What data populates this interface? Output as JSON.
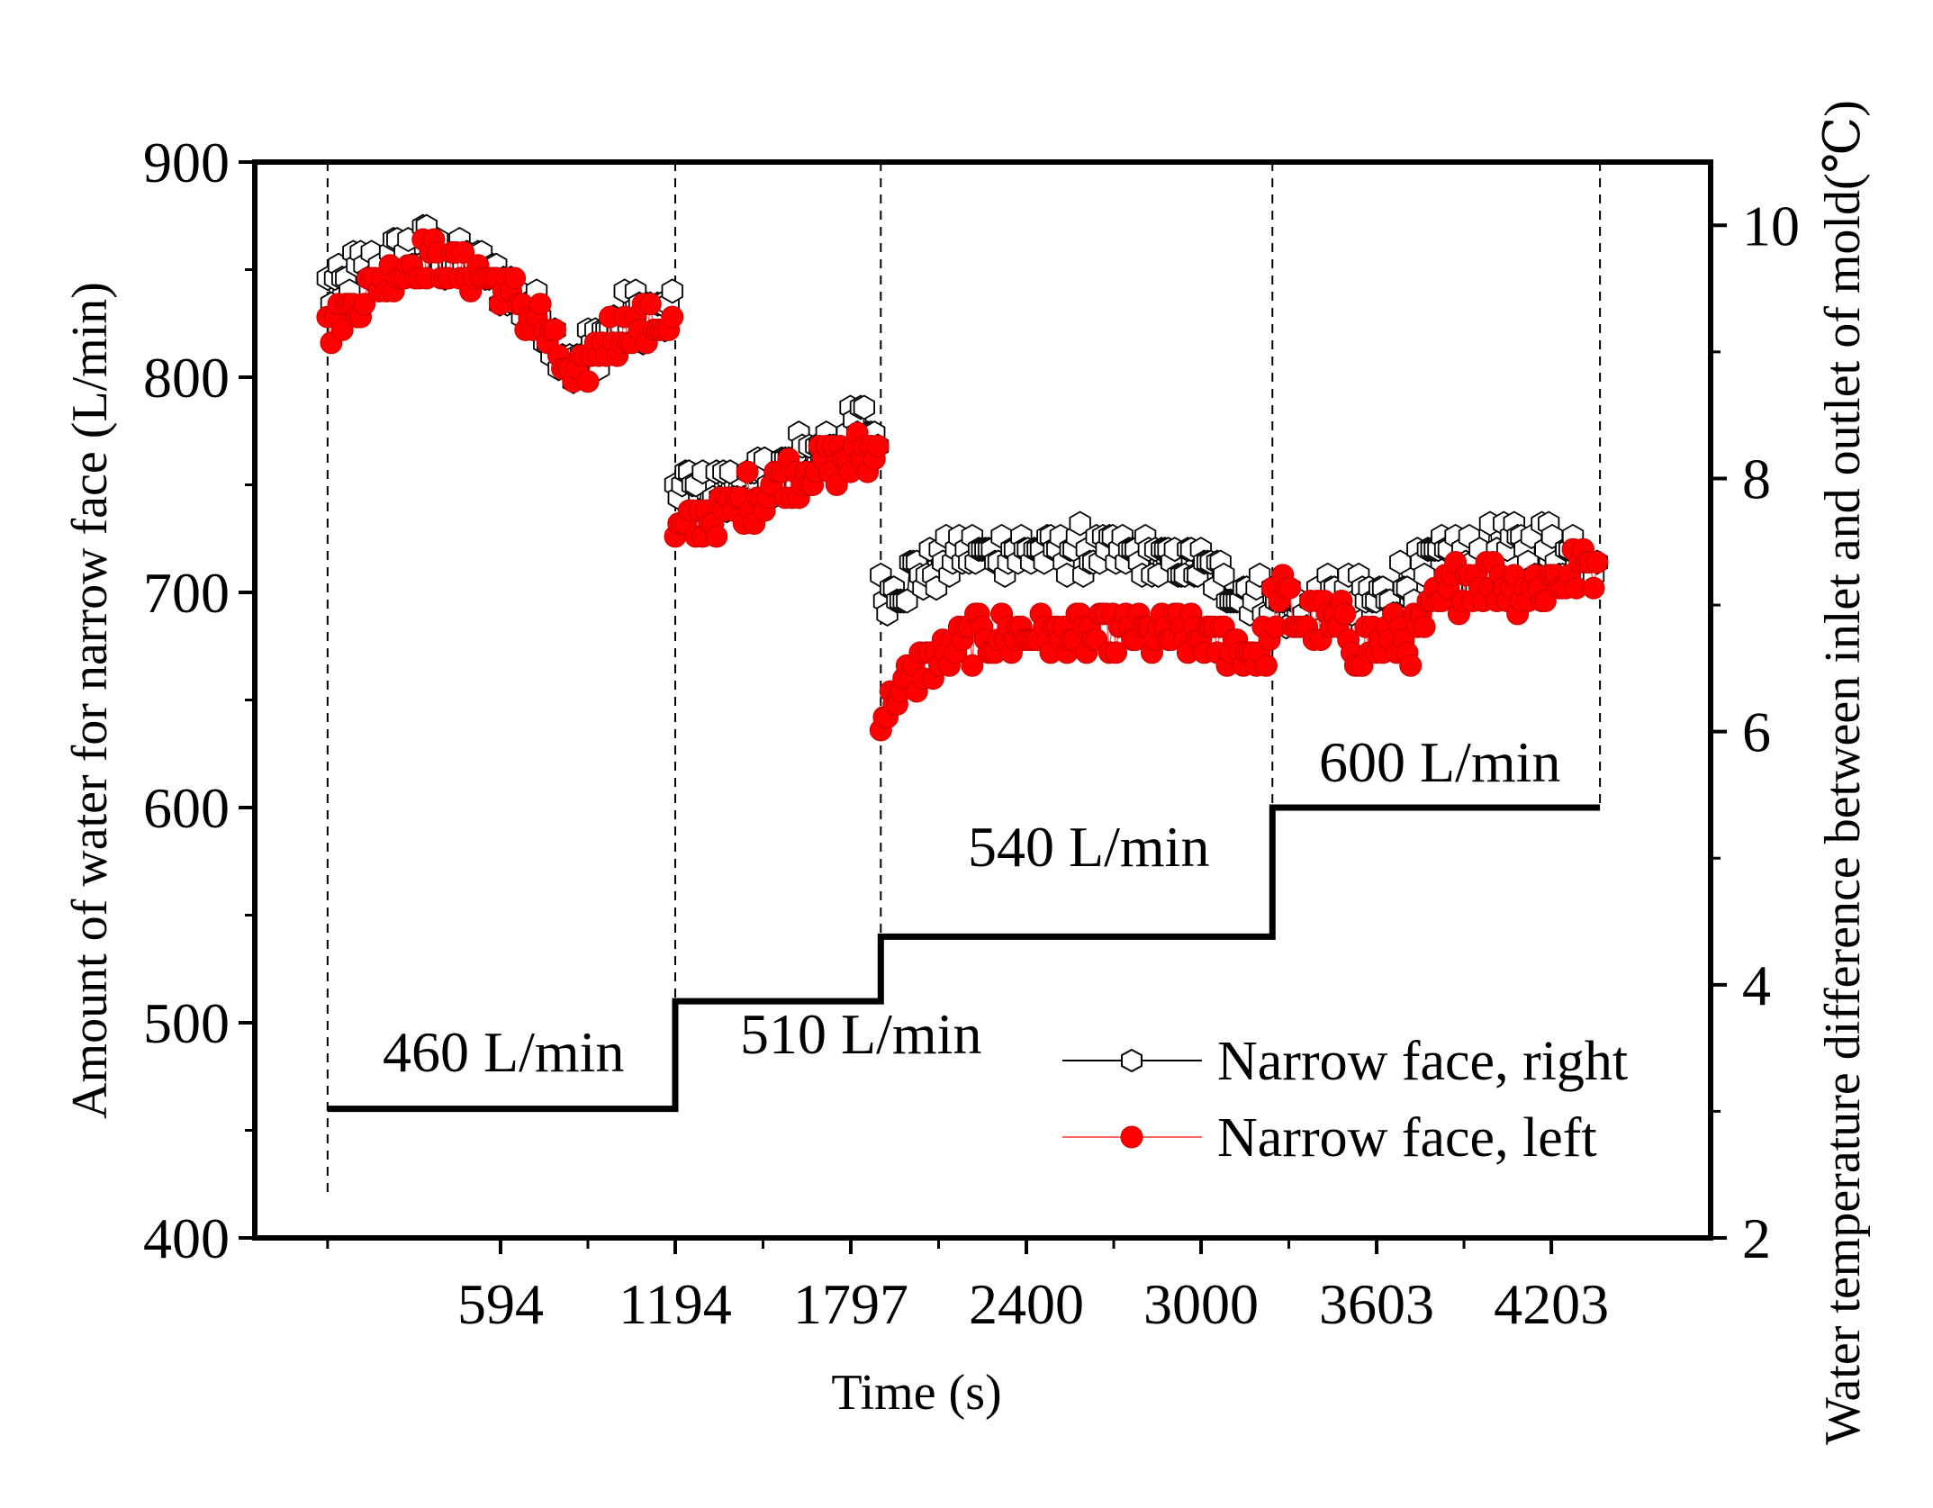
{
  "chart_data": {
    "type": "scatter",
    "xlabel": "Time (s)",
    "ylabel": "Amount of water for narrow face (L/min)",
    "y2label": "Water temperature difference between inlet and outlet of mold(℃)",
    "xlim": [
      -250,
      4750
    ],
    "xticks": [
      594,
      1194,
      1797,
      2400,
      3000,
      3603,
      4203
    ],
    "ylim": [
      400,
      900
    ],
    "yticks": [
      400,
      500,
      600,
      700,
      800,
      900
    ],
    "y2lim": [
      2,
      10.5
    ],
    "y2ticks": [
      2,
      4,
      6,
      8,
      10
    ],
    "boundaries": [
      0,
      1194,
      1900,
      3245,
      4370
    ],
    "flow_steps": [
      {
        "x_start": 0,
        "x_end": 1194,
        "value": 460,
        "label": "460 L/min"
      },
      {
        "x_start": 1194,
        "x_end": 1900,
        "value": 510,
        "label": "510 L/min"
      },
      {
        "x_start": 1900,
        "x_end": 3245,
        "value": 540,
        "label": "540 L/min"
      },
      {
        "x_start": 3245,
        "x_end": 4370,
        "value": 600,
        "label": "600 L/min"
      }
    ],
    "series": [
      {
        "name": "Narrow face, right",
        "marker": "open-hexagon",
        "color": "#000000",
        "axis": "y",
        "segments": [
          {
            "x0": 0,
            "x1": 1194,
            "n": 95,
            "base": 840,
            "trend": [
              [
                0,
                840
              ],
              [
                0.12,
                850
              ],
              [
                0.3,
                860
              ],
              [
                0.5,
                845
              ],
              [
                0.62,
                828
              ],
              [
                0.72,
                805
              ],
              [
                0.8,
                820
              ],
              [
                0.9,
                830
              ],
              [
                1,
                826
              ]
            ],
            "noise": 12
          },
          {
            "x0": 1194,
            "x1": 1900,
            "n": 60,
            "base": 750,
            "trend": [
              [
                0,
                750
              ],
              [
                0.25,
                745
              ],
              [
                0.5,
                755
              ],
              [
                0.75,
                770
              ],
              [
                1,
                778
              ]
            ],
            "noise": 12
          },
          {
            "x0": 1900,
            "x1": 3245,
            "n": 120,
            "base": 712,
            "trend": [
              [
                0,
                700
              ],
              [
                0.2,
                718
              ],
              [
                0.5,
                720
              ],
              [
                0.8,
                712
              ],
              [
                1,
                695
              ]
            ],
            "noise": 10
          },
          {
            "x0": 3245,
            "x1": 4370,
            "n": 95,
            "base": 705,
            "trend": [
              [
                0,
                695
              ],
              [
                0.3,
                695
              ],
              [
                0.55,
                715
              ],
              [
                0.8,
                722
              ],
              [
                1,
                718
              ]
            ],
            "noise": 14
          }
        ]
      },
      {
        "name": "Narrow face, left",
        "marker": "filled-circle",
        "color": "#ff0000",
        "axis": "y",
        "segments": [
          {
            "x0": 0,
            "x1": 1194,
            "n": 95,
            "base": 835,
            "trend": [
              [
                0,
                822
              ],
              [
                0.12,
                842
              ],
              [
                0.3,
                856
              ],
              [
                0.5,
                842
              ],
              [
                0.62,
                825
              ],
              [
                0.72,
                795
              ],
              [
                0.8,
                818
              ],
              [
                0.9,
                824
              ],
              [
                1,
                826
              ]
            ],
            "noise": 10
          },
          {
            "x0": 1194,
            "x1": 1900,
            "n": 60,
            "base": 740,
            "trend": [
              [
                0,
                728
              ],
              [
                0.25,
                738
              ],
              [
                0.5,
                752
              ],
              [
                0.75,
                760
              ],
              [
                1,
                765
              ]
            ],
            "noise": 11
          },
          {
            "x0": 1900,
            "x1": 3245,
            "n": 120,
            "base": 680,
            "trend": [
              [
                0,
                645
              ],
              [
                0.1,
                665
              ],
              [
                0.25,
                680
              ],
              [
                0.5,
                680
              ],
              [
                0.8,
                680
              ],
              [
                1,
                672
              ]
            ],
            "noise": 10
          },
          {
            "x0": 3245,
            "x1": 4370,
            "n": 95,
            "base": 700,
            "trend": [
              [
                0,
                695
              ],
              [
                0.3,
                675
              ],
              [
                0.45,
                680
              ],
              [
                0.6,
                710
              ],
              [
                0.8,
                702
              ],
              [
                1,
                712
              ]
            ],
            "noise": 14
          }
        ]
      }
    ],
    "legend": {
      "position": "lower-right",
      "entries": [
        "Narrow face, right",
        "Narrow face, left"
      ]
    }
  },
  "colors": {
    "right_series": "#000000",
    "left_series": "#ff0000",
    "axes": "#000000",
    "background": "#ffffff"
  }
}
